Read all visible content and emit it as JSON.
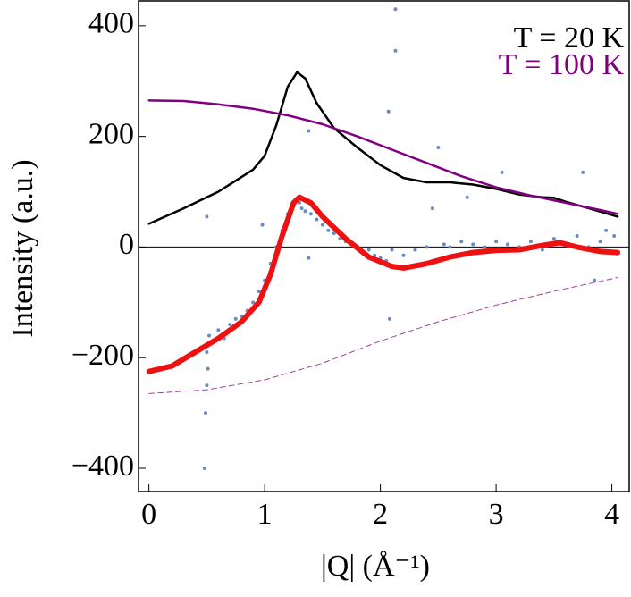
{
  "chart_data": {
    "type": "line",
    "x_label": "|Q| (Å⁻¹)",
    "y_label": "Intensity (a.u.)",
    "xlim": [
      -0.09,
      4.15
    ],
    "ylim": [
      -442,
      445
    ],
    "xticks": [
      0,
      1,
      2,
      3,
      4
    ],
    "yticks": [
      {
        "value": -400,
        "label": "−400"
      },
      {
        "value": -200,
        "label": "−200"
      },
      0,
      200,
      400
    ],
    "hline": 0,
    "series": [
      {
        "style": "scatter",
        "color": "#6a8cc2",
        "x": [
          0.48,
          0.5,
          0.49,
          0.5,
          0.51,
          0.52,
          0.5,
          0.55,
          0.6,
          0.65,
          0.7,
          0.75,
          0.8,
          0.85,
          0.9,
          0.95,
          0.98,
          1.0,
          1.05,
          1.1,
          1.15,
          1.2,
          1.25,
          1.3,
          1.32,
          1.35,
          1.38,
          1.38,
          1.4,
          1.45,
          1.5,
          1.55,
          1.6,
          1.65,
          1.7,
          1.75,
          1.8,
          1.85,
          1.9,
          1.95,
          2.0,
          2.05,
          2.07,
          2.08,
          2.1,
          2.13,
          2.13,
          2.2,
          2.3,
          2.4,
          2.45,
          2.5,
          2.55,
          2.6,
          2.7,
          2.75,
          2.8,
          2.9,
          3.0,
          3.05,
          3.1,
          3.2,
          3.3,
          3.4,
          3.5,
          3.6,
          3.7,
          3.75,
          3.8,
          3.85,
          3.9,
          3.95,
          4.0,
          4.02
        ],
        "values": [
          -400,
          55,
          -300,
          -250,
          -220,
          -160,
          -190,
          -170,
          -150,
          -165,
          -140,
          -130,
          -125,
          -115,
          -100,
          -80,
          40,
          -60,
          -30,
          0,
          30,
          60,
          75,
          80,
          70,
          65,
          210,
          -20,
          60,
          50,
          40,
          30,
          25,
          15,
          10,
          5,
          0,
          -10,
          -5,
          -15,
          -20,
          -25,
          245,
          -130,
          -5,
          430,
          355,
          -15,
          -5,
          0,
          70,
          180,
          5,
          0,
          10,
          90,
          5,
          0,
          10,
          135,
          5,
          0,
          10,
          -5,
          15,
          5,
          20,
          135,
          0,
          -60,
          10,
          30,
          -10,
          20
        ]
      },
      {
        "name": "T = 20 K",
        "style": "line",
        "color": "#000000",
        "width": 2.5,
        "x": [
          0,
          0.3,
          0.6,
          0.9,
          1.0,
          1.1,
          1.2,
          1.28,
          1.35,
          1.45,
          1.6,
          1.8,
          2.0,
          2.2,
          2.4,
          2.6,
          2.8,
          3.0,
          3.2,
          3.4,
          3.5,
          3.6,
          3.8,
          4.05
        ],
        "values": [
          42,
          70,
          100,
          140,
          165,
          220,
          290,
          316,
          305,
          260,
          215,
          180,
          148,
          125,
          117,
          117,
          113,
          105,
          95,
          90,
          89,
          82,
          70,
          55
        ]
      },
      {
        "name": "T = 100 K",
        "style": "line",
        "color": "#800080",
        "width": 2.5,
        "x": [
          0,
          0.3,
          0.6,
          0.9,
          1.2,
          1.5,
          1.8,
          2.1,
          2.4,
          2.7,
          3.0,
          3.3,
          3.6,
          3.9,
          4.05
        ],
        "values": [
          265,
          264,
          258,
          250,
          238,
          222,
          200,
          176,
          152,
          128,
          108,
          93,
          80,
          67,
          60
        ]
      },
      {
        "style": "line",
        "color": "#ee1111",
        "width": 6,
        "x": [
          0,
          0.2,
          0.4,
          0.6,
          0.8,
          0.95,
          1.05,
          1.15,
          1.25,
          1.3,
          1.4,
          1.5,
          1.7,
          1.9,
          2.1,
          2.2,
          2.4,
          2.6,
          2.8,
          3.0,
          3.2,
          3.4,
          3.55,
          3.7,
          3.9,
          4.05
        ],
        "values": [
          -225,
          -215,
          -190,
          -165,
          -135,
          -100,
          -50,
          20,
          80,
          90,
          80,
          55,
          15,
          -18,
          -35,
          -38,
          -30,
          -18,
          -10,
          -6,
          -5,
          3,
          8,
          0,
          -8,
          -10
        ]
      },
      {
        "style": "dashed",
        "color": "#a040a0",
        "width": 1,
        "x": [
          0,
          0.5,
          1.0,
          1.5,
          2.0,
          2.5,
          3.0,
          3.5,
          4.05
        ],
        "values": [
          -265,
          -258,
          -240,
          -210,
          -170,
          -135,
          -105,
          -80,
          -55
        ]
      }
    ]
  }
}
